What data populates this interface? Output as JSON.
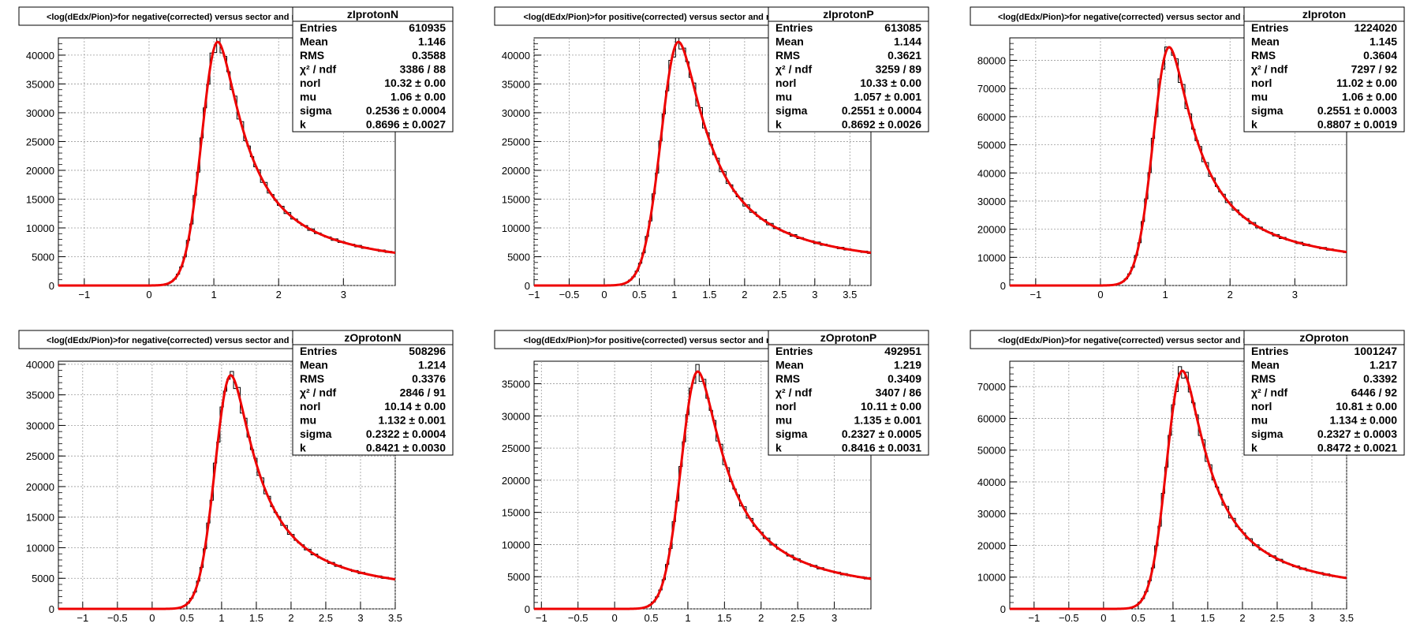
{
  "chart_data": [
    {
      "type": "histogram",
      "title": "<log(dEdx/Pion)>for negative(corrected) versus sector and row",
      "stats": {
        "name": "zIprotonN",
        "rows": [
          [
            "Entries",
            "610935"
          ],
          [
            "Mean",
            "1.146"
          ],
          [
            "RMS",
            "0.3588"
          ],
          [
            "χ² / ndf",
            "3386 / 88"
          ],
          [
            "norl",
            "10.32 ± 0.00"
          ],
          [
            "mu",
            "1.06 ± 0.00"
          ],
          [
            "sigma",
            "0.2536 ± 0.0004"
          ],
          [
            "k",
            "0.8696 ± 0.0027"
          ]
        ]
      },
      "xlim": [
        -1.4,
        3.8
      ],
      "ylim": [
        0,
        43000
      ],
      "xticks": [
        {
          "v": -1,
          "l": "−1"
        },
        {
          "v": 0,
          "l": "0"
        },
        {
          "v": 1,
          "l": "1"
        },
        {
          "v": 2,
          "l": "2"
        },
        {
          "v": 3,
          "l": "3"
        }
      ],
      "yticks": [
        {
          "v": 0,
          "l": "0"
        },
        {
          "v": 5000,
          "l": "5000"
        },
        {
          "v": 10000,
          "l": "10000"
        },
        {
          "v": 15000,
          "l": "15000"
        },
        {
          "v": 20000,
          "l": "20000"
        },
        {
          "v": 25000,
          "l": "25000"
        },
        {
          "v": 30000,
          "l": "30000"
        },
        {
          "v": 35000,
          "l": "35000"
        },
        {
          "v": 40000,
          "l": "40000"
        }
      ],
      "peak": 42300,
      "mu": 1.06,
      "sigma": 0.2536,
      "k": 0.8696
    },
    {
      "type": "histogram",
      "title": "<log(dEdx/Pion)>for positive(corrected) versus sector and row",
      "stats": {
        "name": "zIprotonP",
        "rows": [
          [
            "Entries",
            "613085"
          ],
          [
            "Mean",
            "1.144"
          ],
          [
            "RMS",
            "0.3621"
          ],
          [
            "χ² / ndf",
            "3259 / 89"
          ],
          [
            "norl",
            "10.33 ± 0.00"
          ],
          [
            "mu",
            "1.057 ± 0.001"
          ],
          [
            "sigma",
            "0.2551 ± 0.0004"
          ],
          [
            "k",
            "0.8692 ± 0.0026"
          ]
        ]
      },
      "xlim": [
        -1.0,
        3.8
      ],
      "ylim": [
        0,
        43000
      ],
      "xticks": [
        {
          "v": -1,
          "l": "−1"
        },
        {
          "v": -0.5,
          "l": "−0.5"
        },
        {
          "v": 0,
          "l": "0"
        },
        {
          "v": 0.5,
          "l": "0.5"
        },
        {
          "v": 1,
          "l": "1"
        },
        {
          "v": 1.5,
          "l": "1.5"
        },
        {
          "v": 2,
          "l": "2"
        },
        {
          "v": 2.5,
          "l": "2.5"
        },
        {
          "v": 3,
          "l": "3"
        },
        {
          "v": 3.5,
          "l": "3.5"
        }
      ],
      "yticks": [
        {
          "v": 0,
          "l": "0"
        },
        {
          "v": 5000,
          "l": "5000"
        },
        {
          "v": 10000,
          "l": "10000"
        },
        {
          "v": 15000,
          "l": "15000"
        },
        {
          "v": 20000,
          "l": "20000"
        },
        {
          "v": 25000,
          "l": "25000"
        },
        {
          "v": 30000,
          "l": "30000"
        },
        {
          "v": 35000,
          "l": "35000"
        },
        {
          "v": 40000,
          "l": "40000"
        }
      ],
      "peak": 42300,
      "mu": 1.057,
      "sigma": 0.2551,
      "k": 0.8692
    },
    {
      "type": "histogram",
      "title": "<log(dEdx/Pion)>for negative(corrected) versus sector and row",
      "stats": {
        "name": "zIproton",
        "rows": [
          [
            "Entries",
            "1224020"
          ],
          [
            "Mean",
            "1.145"
          ],
          [
            "RMS",
            "0.3604"
          ],
          [
            "χ² / ndf",
            "7297 / 92"
          ],
          [
            "norl",
            "11.02 ± 0.00"
          ],
          [
            "mu",
            "1.06 ± 0.00"
          ],
          [
            "sigma",
            "0.2551 ± 0.0003"
          ],
          [
            "k",
            "0.8807 ± 0.0019"
          ]
        ]
      },
      "xlim": [
        -1.4,
        3.8
      ],
      "ylim": [
        0,
        88000
      ],
      "xticks": [
        {
          "v": -1,
          "l": "−1"
        },
        {
          "v": 0,
          "l": "0"
        },
        {
          "v": 1,
          "l": "1"
        },
        {
          "v": 2,
          "l": "2"
        },
        {
          "v": 3,
          "l": "3"
        }
      ],
      "yticks": [
        {
          "v": 0,
          "l": "0"
        },
        {
          "v": 10000,
          "l": "10000"
        },
        {
          "v": 20000,
          "l": "20000"
        },
        {
          "v": 30000,
          "l": "30000"
        },
        {
          "v": 40000,
          "l": "40000"
        },
        {
          "v": 50000,
          "l": "50000"
        },
        {
          "v": 60000,
          "l": "60000"
        },
        {
          "v": 70000,
          "l": "70000"
        },
        {
          "v": 80000,
          "l": "80000"
        }
      ],
      "peak": 84700,
      "mu": 1.06,
      "sigma": 0.2551,
      "k": 0.8807
    },
    {
      "type": "histogram",
      "title": "<log(dEdx/Pion)>for negative(corrected) versus sector and row",
      "stats": {
        "name": "zOprotonN",
        "rows": [
          [
            "Entries",
            "508296"
          ],
          [
            "Mean",
            "1.214"
          ],
          [
            "RMS",
            "0.3376"
          ],
          [
            "χ² / ndf",
            "2846 / 91"
          ],
          [
            "norl",
            "10.14 ± 0.00"
          ],
          [
            "mu",
            "1.132 ± 0.001"
          ],
          [
            "sigma",
            "0.2322 ± 0.0004"
          ],
          [
            "k",
            "0.8421 ± 0.0030"
          ]
        ]
      },
      "xlim": [
        -1.35,
        3.5
      ],
      "ylim": [
        0,
        40500
      ],
      "xticks": [
        {
          "v": -1,
          "l": "−1"
        },
        {
          "v": -0.5,
          "l": "−0.5"
        },
        {
          "v": 0,
          "l": "0"
        },
        {
          "v": 0.5,
          "l": "0.5"
        },
        {
          "v": 1,
          "l": "1"
        },
        {
          "v": 1.5,
          "l": "1.5"
        },
        {
          "v": 2,
          "l": "2"
        },
        {
          "v": 2.5,
          "l": "2.5"
        },
        {
          "v": 3,
          "l": "3"
        },
        {
          "v": 3.5,
          "l": "3.5"
        }
      ],
      "yticks": [
        {
          "v": 0,
          "l": "0"
        },
        {
          "v": 5000,
          "l": "5000"
        },
        {
          "v": 10000,
          "l": "10000"
        },
        {
          "v": 15000,
          "l": "15000"
        },
        {
          "v": 20000,
          "l": "20000"
        },
        {
          "v": 25000,
          "l": "25000"
        },
        {
          "v": 30000,
          "l": "30000"
        },
        {
          "v": 35000,
          "l": "35000"
        },
        {
          "v": 40000,
          "l": "40000"
        }
      ],
      "peak": 38200,
      "mu": 1.132,
      "sigma": 0.2322,
      "k": 0.8421
    },
    {
      "type": "histogram",
      "title": "<log(dEdx/Pion)>for positive(corrected) versus sector and row",
      "stats": {
        "name": "zOprotonP",
        "rows": [
          [
            "Entries",
            "492951"
          ],
          [
            "Mean",
            "1.219"
          ],
          [
            "RMS",
            "0.3409"
          ],
          [
            "χ² / ndf",
            "3407 / 86"
          ],
          [
            "norl",
            "10.11 ± 0.00"
          ],
          [
            "mu",
            "1.135 ± 0.001"
          ],
          [
            "sigma",
            "0.2327 ± 0.0005"
          ],
          [
            "k",
            "0.8416 ± 0.0031"
          ]
        ]
      },
      "xlim": [
        -1.1,
        3.5
      ],
      "ylim": [
        0,
        38500
      ],
      "xticks": [
        {
          "v": -1,
          "l": "−1"
        },
        {
          "v": -0.5,
          "l": "−0.5"
        },
        {
          "v": 0,
          "l": "0"
        },
        {
          "v": 0.5,
          "l": "0.5"
        },
        {
          "v": 1,
          "l": "1"
        },
        {
          "v": 1.5,
          "l": "1.5"
        },
        {
          "v": 2,
          "l": "2"
        },
        {
          "v": 2.5,
          "l": "2.5"
        },
        {
          "v": 3,
          "l": "3"
        }
      ],
      "yticks": [
        {
          "v": 0,
          "l": "0"
        },
        {
          "v": 5000,
          "l": "5000"
        },
        {
          "v": 10000,
          "l": "10000"
        },
        {
          "v": 15000,
          "l": "15000"
        },
        {
          "v": 20000,
          "l": "20000"
        },
        {
          "v": 25000,
          "l": "25000"
        },
        {
          "v": 30000,
          "l": "30000"
        },
        {
          "v": 35000,
          "l": "35000"
        }
      ],
      "peak": 36900,
      "mu": 1.135,
      "sigma": 0.2327,
      "k": 0.8416
    },
    {
      "type": "histogram",
      "title": "<log(dEdx/Pion)>for negative(corrected) versus sector and row",
      "stats": {
        "name": "zOproton",
        "rows": [
          [
            "Entries",
            "1001247"
          ],
          [
            "Mean",
            "1.217"
          ],
          [
            "RMS",
            "0.3392"
          ],
          [
            "χ² / ndf",
            "6446 / 92"
          ],
          [
            "norl",
            "10.81 ± 0.00"
          ],
          [
            "mu",
            "1.134 ± 0.000"
          ],
          [
            "sigma",
            "0.2327 ± 0.0003"
          ],
          [
            "k",
            "0.8472 ± 0.0021"
          ]
        ]
      },
      "xlim": [
        -1.35,
        3.5
      ],
      "ylim": [
        0,
        78000
      ],
      "xticks": [
        {
          "v": -1,
          "l": "−1"
        },
        {
          "v": -0.5,
          "l": "−0.5"
        },
        {
          "v": 0,
          "l": "0"
        },
        {
          "v": 0.5,
          "l": "0.5"
        },
        {
          "v": 1,
          "l": "1"
        },
        {
          "v": 1.5,
          "l": "1.5"
        },
        {
          "v": 2,
          "l": "2"
        },
        {
          "v": 2.5,
          "l": "2.5"
        },
        {
          "v": 3,
          "l": "3"
        },
        {
          "v": 3.5,
          "l": "3.5"
        }
      ],
      "yticks": [
        {
          "v": 0,
          "l": "0"
        },
        {
          "v": 10000,
          "l": "10000"
        },
        {
          "v": 20000,
          "l": "20000"
        },
        {
          "v": 30000,
          "l": "30000"
        },
        {
          "v": 40000,
          "l": "40000"
        },
        {
          "v": 50000,
          "l": "50000"
        },
        {
          "v": 60000,
          "l": "60000"
        },
        {
          "v": 70000,
          "l": "70000"
        }
      ],
      "peak": 75000,
      "mu": 1.134,
      "sigma": 0.2327,
      "k": 0.8472
    }
  ],
  "colors": {
    "fit": "#ee0000",
    "hist": "#000000",
    "grid": "#9a9a9a"
  }
}
